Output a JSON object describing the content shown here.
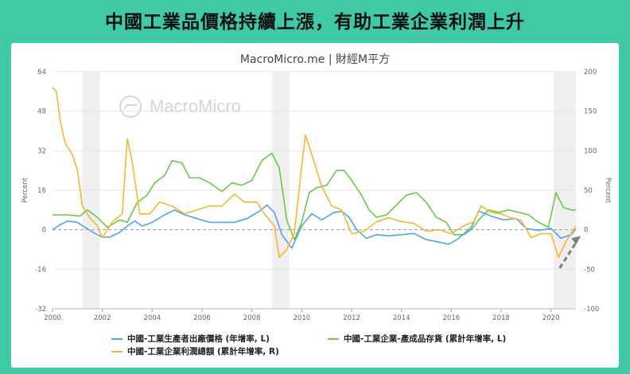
{
  "banner": {
    "title": "中國工業品價格持續上漲，有助工業企業利潤上升"
  },
  "source": "MacroMicro.me | 財經M平方",
  "watermark": "MacroMicro",
  "colors": {
    "background": "#3fc9a7",
    "ppi": "#4aa8e0",
    "inventory": "#6cc64e",
    "profit": "#f5b731",
    "arrow": "#7a7f85",
    "shade": "#efefef"
  },
  "chart_data": {
    "type": "line",
    "x_range": [
      2000,
      2021
    ],
    "x_ticks": [
      "2000",
      "2002",
      "2004",
      "2006",
      "2008",
      "2010",
      "2012",
      "2014",
      "2016",
      "2018",
      "2020"
    ],
    "y_left": {
      "label": "Percent",
      "range": [
        -32,
        64
      ],
      "ticks": [
        "64",
        "48",
        "32",
        "16",
        "0",
        "-16",
        "-32"
      ]
    },
    "y_right": {
      "label": "Percent",
      "range": [
        -100,
        200
      ],
      "ticks": [
        "200",
        "150",
        "100",
        "50",
        "0",
        "-50",
        "-100"
      ]
    },
    "shaded_periods": [
      [
        2001.2,
        2001.9
      ],
      [
        2008.8,
        2009.5
      ],
      [
        2020.1,
        2021.0
      ]
    ],
    "series": [
      {
        "name": "中國-工業生產者出廠價格 (年增率, L)",
        "axis": "left",
        "color": "#4aa8e0",
        "points": [
          [
            2000.0,
            0
          ],
          [
            2000.3,
            2
          ],
          [
            2000.6,
            3.5
          ],
          [
            2001.0,
            3
          ],
          [
            2001.3,
            1
          ],
          [
            2001.7,
            -1.5
          ],
          [
            2002.0,
            -3
          ],
          [
            2002.3,
            -3
          ],
          [
            2002.7,
            -1
          ],
          [
            2003.0,
            1.5
          ],
          [
            2003.3,
            3.5
          ],
          [
            2003.6,
            1.5
          ],
          [
            2004.0,
            3
          ],
          [
            2004.5,
            6
          ],
          [
            2004.9,
            8
          ],
          [
            2005.3,
            6
          ],
          [
            2005.8,
            4.5
          ],
          [
            2006.3,
            3
          ],
          [
            2006.8,
            3
          ],
          [
            2007.3,
            3
          ],
          [
            2007.8,
            4.5
          ],
          [
            2008.3,
            7.5
          ],
          [
            2008.6,
            10
          ],
          [
            2008.9,
            7
          ],
          [
            2009.2,
            -2
          ],
          [
            2009.6,
            -7.5
          ],
          [
            2010.0,
            1.5
          ],
          [
            2010.4,
            6.5
          ],
          [
            2010.8,
            4
          ],
          [
            2011.3,
            7
          ],
          [
            2011.6,
            7.5
          ],
          [
            2011.9,
            5
          ],
          [
            2012.2,
            0
          ],
          [
            2012.6,
            -3.5
          ],
          [
            2013.0,
            -2
          ],
          [
            2013.5,
            -2.5
          ],
          [
            2014.0,
            -2
          ],
          [
            2014.5,
            -1.5
          ],
          [
            2015.0,
            -4
          ],
          [
            2015.5,
            -5
          ],
          [
            2015.9,
            -5.9
          ],
          [
            2016.3,
            -3.5
          ],
          [
            2016.8,
            1
          ],
          [
            2017.1,
            7.5
          ],
          [
            2017.6,
            5.5
          ],
          [
            2018.1,
            4
          ],
          [
            2018.6,
            4.5
          ],
          [
            2019.0,
            0.5
          ],
          [
            2019.5,
            -0.3
          ],
          [
            2020.0,
            0.5
          ],
          [
            2020.4,
            -3.5
          ],
          [
            2020.8,
            -2
          ],
          [
            2021.0,
            0.3
          ]
        ]
      },
      {
        "name": "中國-工業企業-產成品存貨 (累計年增率, L)",
        "axis": "left",
        "color": "#6cc64e",
        "points": [
          [
            2000.0,
            6
          ],
          [
            2000.6,
            6
          ],
          [
            2001.1,
            5.5
          ],
          [
            2001.4,
            8
          ],
          [
            2001.8,
            5
          ],
          [
            2002.2,
            1
          ],
          [
            2002.7,
            4
          ],
          [
            2003.0,
            3
          ],
          [
            2003.4,
            11
          ],
          [
            2003.8,
            14
          ],
          [
            2004.1,
            19
          ],
          [
            2004.5,
            22
          ],
          [
            2004.8,
            28
          ],
          [
            2005.2,
            27
          ],
          [
            2005.5,
            21
          ],
          [
            2005.9,
            21
          ],
          [
            2006.3,
            19
          ],
          [
            2006.8,
            15.5
          ],
          [
            2007.2,
            19
          ],
          [
            2007.6,
            18
          ],
          [
            2008.0,
            20
          ],
          [
            2008.4,
            28
          ],
          [
            2008.8,
            31
          ],
          [
            2009.1,
            25
          ],
          [
            2009.4,
            4
          ],
          [
            2009.7,
            -4
          ],
          [
            2010.0,
            3
          ],
          [
            2010.3,
            15
          ],
          [
            2010.6,
            17
          ],
          [
            2011.0,
            18
          ],
          [
            2011.4,
            24
          ],
          [
            2011.7,
            24
          ],
          [
            2012.0,
            20
          ],
          [
            2012.4,
            14
          ],
          [
            2012.7,
            8
          ],
          [
            2013.0,
            5
          ],
          [
            2013.4,
            6
          ],
          [
            2013.8,
            10
          ],
          [
            2014.2,
            14
          ],
          [
            2014.6,
            15
          ],
          [
            2015.0,
            11
          ],
          [
            2015.4,
            5
          ],
          [
            2015.8,
            3
          ],
          [
            2016.1,
            -2
          ],
          [
            2016.5,
            -2
          ],
          [
            2016.8,
            0
          ],
          [
            2017.1,
            4
          ],
          [
            2017.5,
            8
          ],
          [
            2017.9,
            7
          ],
          [
            2018.3,
            8
          ],
          [
            2018.7,
            7
          ],
          [
            2019.1,
            6
          ],
          [
            2019.5,
            3
          ],
          [
            2019.9,
            1
          ],
          [
            2020.2,
            15
          ],
          [
            2020.5,
            9
          ],
          [
            2020.8,
            8
          ],
          [
            2021.0,
            8
          ]
        ]
      },
      {
        "name": "中國-工業企業利潤總額 (累計年增率, R)",
        "axis": "right",
        "color": "#f5b731",
        "points": [
          [
            2000.0,
            180
          ],
          [
            2000.15,
            175
          ],
          [
            2000.3,
            140
          ],
          [
            2000.5,
            110
          ],
          [
            2000.8,
            95
          ],
          [
            2001.0,
            75
          ],
          [
            2001.2,
            30
          ],
          [
            2001.5,
            15
          ],
          [
            2001.8,
            5
          ],
          [
            2002.0,
            -10
          ],
          [
            2002.4,
            10
          ],
          [
            2002.8,
            20
          ],
          [
            2003.0,
            115
          ],
          [
            2003.2,
            85
          ],
          [
            2003.5,
            20
          ],
          [
            2003.9,
            20
          ],
          [
            2004.3,
            35
          ],
          [
            2004.8,
            30
          ],
          [
            2005.3,
            20
          ],
          [
            2005.8,
            25
          ],
          [
            2006.3,
            30
          ],
          [
            2006.8,
            30
          ],
          [
            2007.3,
            45
          ],
          [
            2007.7,
            35
          ],
          [
            2008.2,
            35
          ],
          [
            2008.5,
            20
          ],
          [
            2008.9,
            5
          ],
          [
            2009.1,
            -35
          ],
          [
            2009.4,
            -25
          ],
          [
            2009.7,
            -5
          ],
          [
            2010.0,
            80
          ],
          [
            2010.15,
            120
          ],
          [
            2010.4,
            95
          ],
          [
            2010.8,
            55
          ],
          [
            2011.2,
            30
          ],
          [
            2011.6,
            25
          ],
          [
            2012.0,
            -5
          ],
          [
            2012.5,
            -2
          ],
          [
            2013.0,
            10
          ],
          [
            2013.5,
            15
          ],
          [
            2014.0,
            10
          ],
          [
            2014.5,
            8
          ],
          [
            2015.0,
            -2
          ],
          [
            2015.5,
            0
          ],
          [
            2016.0,
            -5
          ],
          [
            2016.5,
            5
          ],
          [
            2016.9,
            10
          ],
          [
            2017.2,
            30
          ],
          [
            2017.6,
            22
          ],
          [
            2018.0,
            20
          ],
          [
            2018.4,
            15
          ],
          [
            2018.8,
            12
          ],
          [
            2019.2,
            -10
          ],
          [
            2019.6,
            -5
          ],
          [
            2020.0,
            -5
          ],
          [
            2020.3,
            -35
          ],
          [
            2020.6,
            -15
          ],
          [
            2020.9,
            0
          ],
          [
            2021.0,
            5
          ]
        ]
      }
    ]
  },
  "legend": {
    "ppi": "中國-工業生產者出廠價格 (年增率, L)",
    "inventory": "中國-工業企業-產成品存貨 (累計年增率, L)",
    "profit": "中國-工業企業利潤總額 (累計年增率, R)"
  }
}
